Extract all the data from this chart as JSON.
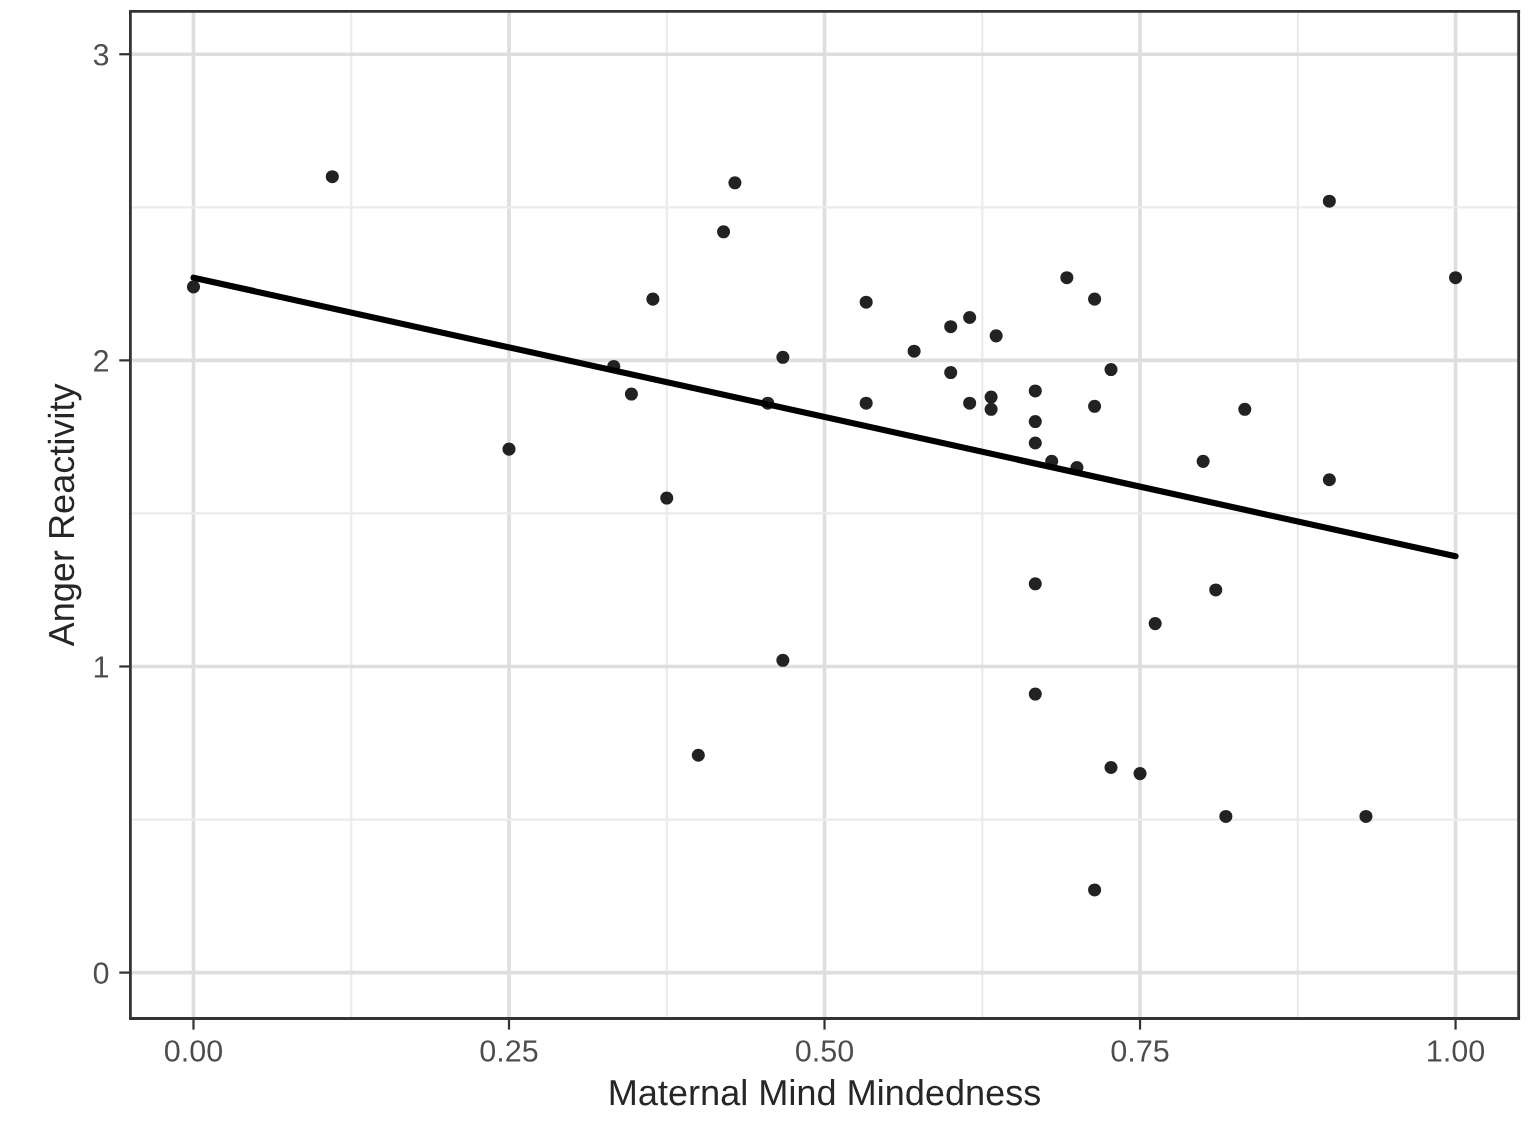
{
  "chart_data": {
    "type": "scatter",
    "xlabel": "Maternal Mind Mindedness",
    "ylabel": "Anger Reactivity",
    "xlim": [
      -0.05,
      1.05
    ],
    "ylim": [
      -0.15,
      3.14
    ],
    "xticks": [
      {
        "value": 0,
        "label": "0.00"
      },
      {
        "value": 0.125,
        "label": null
      },
      {
        "value": 0.25,
        "label": "0.25"
      },
      {
        "value": 0.375,
        "label": null
      },
      {
        "value": 0.5,
        "label": "0.50"
      },
      {
        "value": 0.625,
        "label": null
      },
      {
        "value": 0.75,
        "label": "0.75"
      },
      {
        "value": 0.875,
        "label": null
      },
      {
        "value": 1,
        "label": "1.00"
      }
    ],
    "yticks": [
      0,
      {
        "value": 0.5,
        "label": null
      },
      1,
      {
        "value": 1.5,
        "label": null
      },
      2,
      {
        "value": 2.5,
        "label": null
      },
      3
    ],
    "grid": true,
    "series": [
      {
        "color": "#222222",
        "marker": "circle",
        "x": [
          0.0,
          0.11,
          0.25,
          0.333,
          0.347,
          0.364,
          0.375,
          0.4,
          0.42,
          0.429,
          0.455,
          0.467,
          0.467,
          0.533,
          0.533,
          0.571,
          0.6,
          0.6,
          0.615,
          0.615,
          0.632,
          0.632,
          0.636,
          0.667,
          0.667,
          0.667,
          0.667,
          0.667,
          0.68,
          0.692,
          0.7,
          0.714,
          0.714,
          0.714,
          0.727,
          0.727,
          0.75,
          0.762,
          0.8,
          0.81,
          0.818,
          0.833,
          0.9,
          0.9,
          0.929,
          1.0
        ],
        "values": [
          2.24,
          2.6,
          1.71,
          1.98,
          1.89,
          2.2,
          1.55,
          0.71,
          2.42,
          2.58,
          1.86,
          2.01,
          1.02,
          2.19,
          1.86,
          2.03,
          2.11,
          1.96,
          2.14,
          1.86,
          1.88,
          1.84,
          2.08,
          1.9,
          1.8,
          1.73,
          1.27,
          0.91,
          1.67,
          2.27,
          1.65,
          2.2,
          1.85,
          0.27,
          1.97,
          0.67,
          0.65,
          1.14,
          1.67,
          1.25,
          0.51,
          1.84,
          2.52,
          1.61,
          0.51,
          2.27
        ]
      },
      {
        "type": "line",
        "color": "#000000",
        "x": [
          0,
          1
        ],
        "values": [
          2.27,
          1.36
        ]
      }
    ]
  }
}
